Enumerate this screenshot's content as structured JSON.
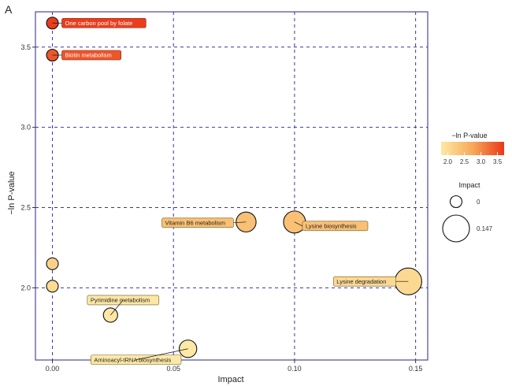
{
  "panel_label": "A",
  "colors": {
    "low": "#fde9a6",
    "mid": "#f8a95a",
    "high": "#e8381a",
    "grid": "#3a34a8",
    "frame": "#4a4a9a"
  },
  "chart_data": {
    "type": "scatter",
    "title": "",
    "xlabel": "Impact",
    "ylabel": "−ln P-value",
    "xlim": [
      -0.007,
      0.155
    ],
    "ylim": [
      1.55,
      3.72
    ],
    "x_ticks": [
      0.0,
      0.05,
      0.1,
      0.15
    ],
    "x_tick_labels": [
      "0.00",
      "0.05",
      "0.10",
      "0.15"
    ],
    "y_ticks": [
      2.0,
      2.5,
      3.0,
      3.5
    ],
    "y_tick_labels": [
      "2.0",
      "2.5",
      "3.0",
      "3.5"
    ],
    "grid": true,
    "points": [
      {
        "x": 0.0,
        "y": 3.65,
        "impact": 0.0,
        "label": "One carbon pool by folate"
      },
      {
        "x": 0.0,
        "y": 3.45,
        "impact": 0.0,
        "label": "Biotin metabolism"
      },
      {
        "x": 0.0,
        "y": 2.15,
        "impact": 0.0,
        "label": ""
      },
      {
        "x": 0.0,
        "y": 2.01,
        "impact": 0.0,
        "label": ""
      },
      {
        "x": 0.08,
        "y": 2.41,
        "impact": 0.08,
        "label": "Vitamin B6 metabolism"
      },
      {
        "x": 0.1,
        "y": 2.41,
        "impact": 0.1,
        "label": "Lysine biosynthesis"
      },
      {
        "x": 0.147,
        "y": 2.04,
        "impact": 0.147,
        "label": "Lysine degradation"
      },
      {
        "x": 0.024,
        "y": 1.83,
        "impact": 0.024,
        "label": "Pyrimidine metabolism"
      },
      {
        "x": 0.056,
        "y": 1.62,
        "impact": 0.056,
        "label": "Aminoacyl-tRNA biosynthesis"
      }
    ],
    "color_legend": {
      "title": "−ln P-value",
      "min": 1.8,
      "max": 3.7,
      "ticks": [
        2.0,
        2.5,
        3.0,
        3.5
      ],
      "tick_labels": [
        "2.0",
        "2.5",
        "3.0",
        "3.5"
      ]
    },
    "size_legend": {
      "title": "Impact",
      "entries": [
        {
          "value": 0,
          "label": "0"
        },
        {
          "value": 0.147,
          "label": "0.147"
        }
      ]
    }
  }
}
